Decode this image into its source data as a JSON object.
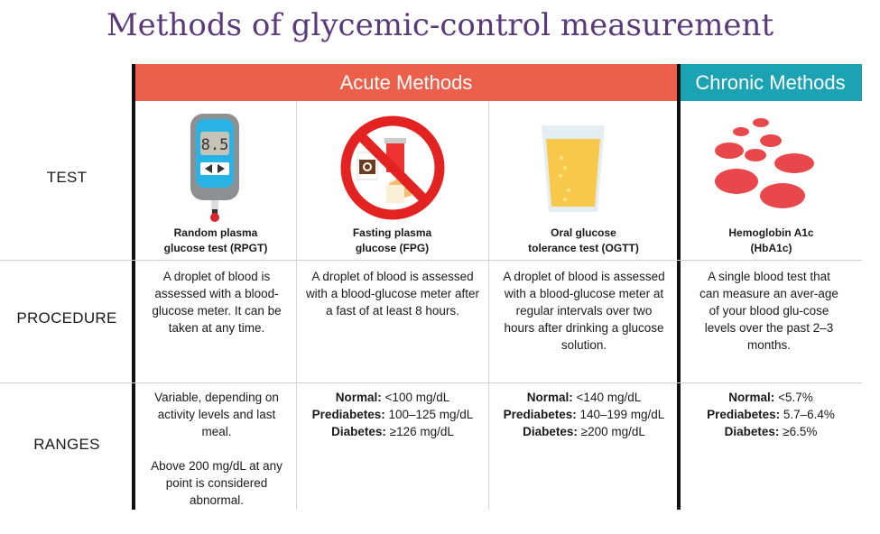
{
  "title": "Methods of glycemic-control measurement",
  "headers": {
    "acute": "Acute Methods",
    "chronic": "Chronic Methods"
  },
  "colors": {
    "acute": "#ec5f4b",
    "chronic": "#1ca3b3",
    "title": "#5b3a7a"
  },
  "rows": {
    "test": "TEST",
    "procedure": "PROCEDURE",
    "ranges": "RANGES"
  },
  "methods": [
    {
      "name_line1": "Random plasma",
      "name_line2": "glucose test (RPGT)",
      "icon": "glucose-meter-icon",
      "meter_reading": "8.5",
      "procedure": "A droplet of blood is assessed with a blood-glucose meter. It can be taken at any time.",
      "ranges_text1": "Variable, depending on activity levels and last meal.",
      "ranges_text2": "Above 200 mg/dL at any point is considered abnormal."
    },
    {
      "name_line1": "Fasting plasma",
      "name_line2": "glucose (FPG)",
      "icon": "no-food-icon",
      "procedure": "A droplet of blood is assessed with a blood-glucose meter after a fast of at least 8 hours.",
      "ranges": [
        {
          "label": "Normal:",
          "value": "<100 mg/dL"
        },
        {
          "label": "Prediabetes:",
          "value": "100–125 mg/dL"
        },
        {
          "label": "Diabetes:",
          "value": "≥126 mg/dL"
        }
      ]
    },
    {
      "name_line1": "Oral glucose",
      "name_line2": "tolerance test (OGTT)",
      "icon": "glucose-drink-icon",
      "procedure": "A droplet of blood is assessed with a blood-glucose meter at regular intervals over two hours after drinking a glucose solution.",
      "ranges": [
        {
          "label": "Normal:",
          "value": "<140 mg/dL"
        },
        {
          "label": "Prediabetes:",
          "value": "140–199 mg/dL"
        },
        {
          "label": "Diabetes:",
          "value": "≥200 mg/dL"
        }
      ]
    },
    {
      "name_line1": "Hemoglobin A1c",
      "name_line2": "(HbA1c)",
      "icon": "red-blood-cells-icon",
      "procedure": "A single blood test that can measure an aver-age of your blood glu-cose levels over the past 2–3 months.",
      "ranges": [
        {
          "label": "Normal:",
          "value": "<5.7%"
        },
        {
          "label": "Prediabetes:",
          "value": "5.7–6.4%"
        },
        {
          "label": "Diabetes:",
          "value": "≥6.5%"
        }
      ]
    }
  ]
}
